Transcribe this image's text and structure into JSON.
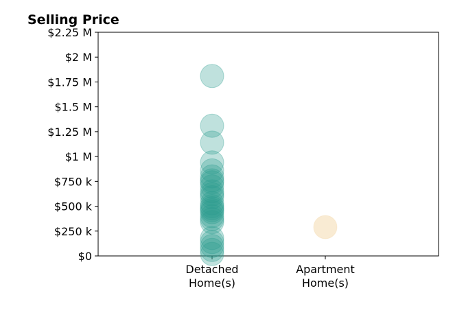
{
  "chart_data": {
    "type": "scatter",
    "title": "Selling Price",
    "xlabel": "",
    "ylabel": "",
    "categories": [
      "Detached\nHome(s)",
      "Apartment\nHome(s)"
    ],
    "ylim": [
      0,
      2250000
    ],
    "yticks": [
      0,
      250000,
      500000,
      750000,
      1000000,
      1250000,
      1500000,
      1750000,
      2000000,
      2250000
    ],
    "ytick_labels": [
      "$0",
      "$250 k",
      "$500 k",
      "$750 k",
      "$1 M",
      "$1.25 M",
      "$1.5 M",
      "$1.75 M",
      "$2 M",
      "$2.25 M"
    ],
    "grid": false,
    "legend": "none",
    "series": [
      {
        "category": "Detached\nHome(s)",
        "color": "#2a9d8f",
        "values": [
          1810000,
          1310000,
          1140000,
          940000,
          860000,
          800000,
          760000,
          740000,
          700000,
          650000,
          620000,
          590000,
          530000,
          500000,
          480000,
          460000,
          440000,
          400000,
          370000,
          340000,
          180000,
          140000,
          100000,
          60000,
          20000
        ]
      },
      {
        "category": "Apartment\nHome(s)",
        "color": "#f4d8a8",
        "values": [
          290000
        ]
      }
    ]
  }
}
